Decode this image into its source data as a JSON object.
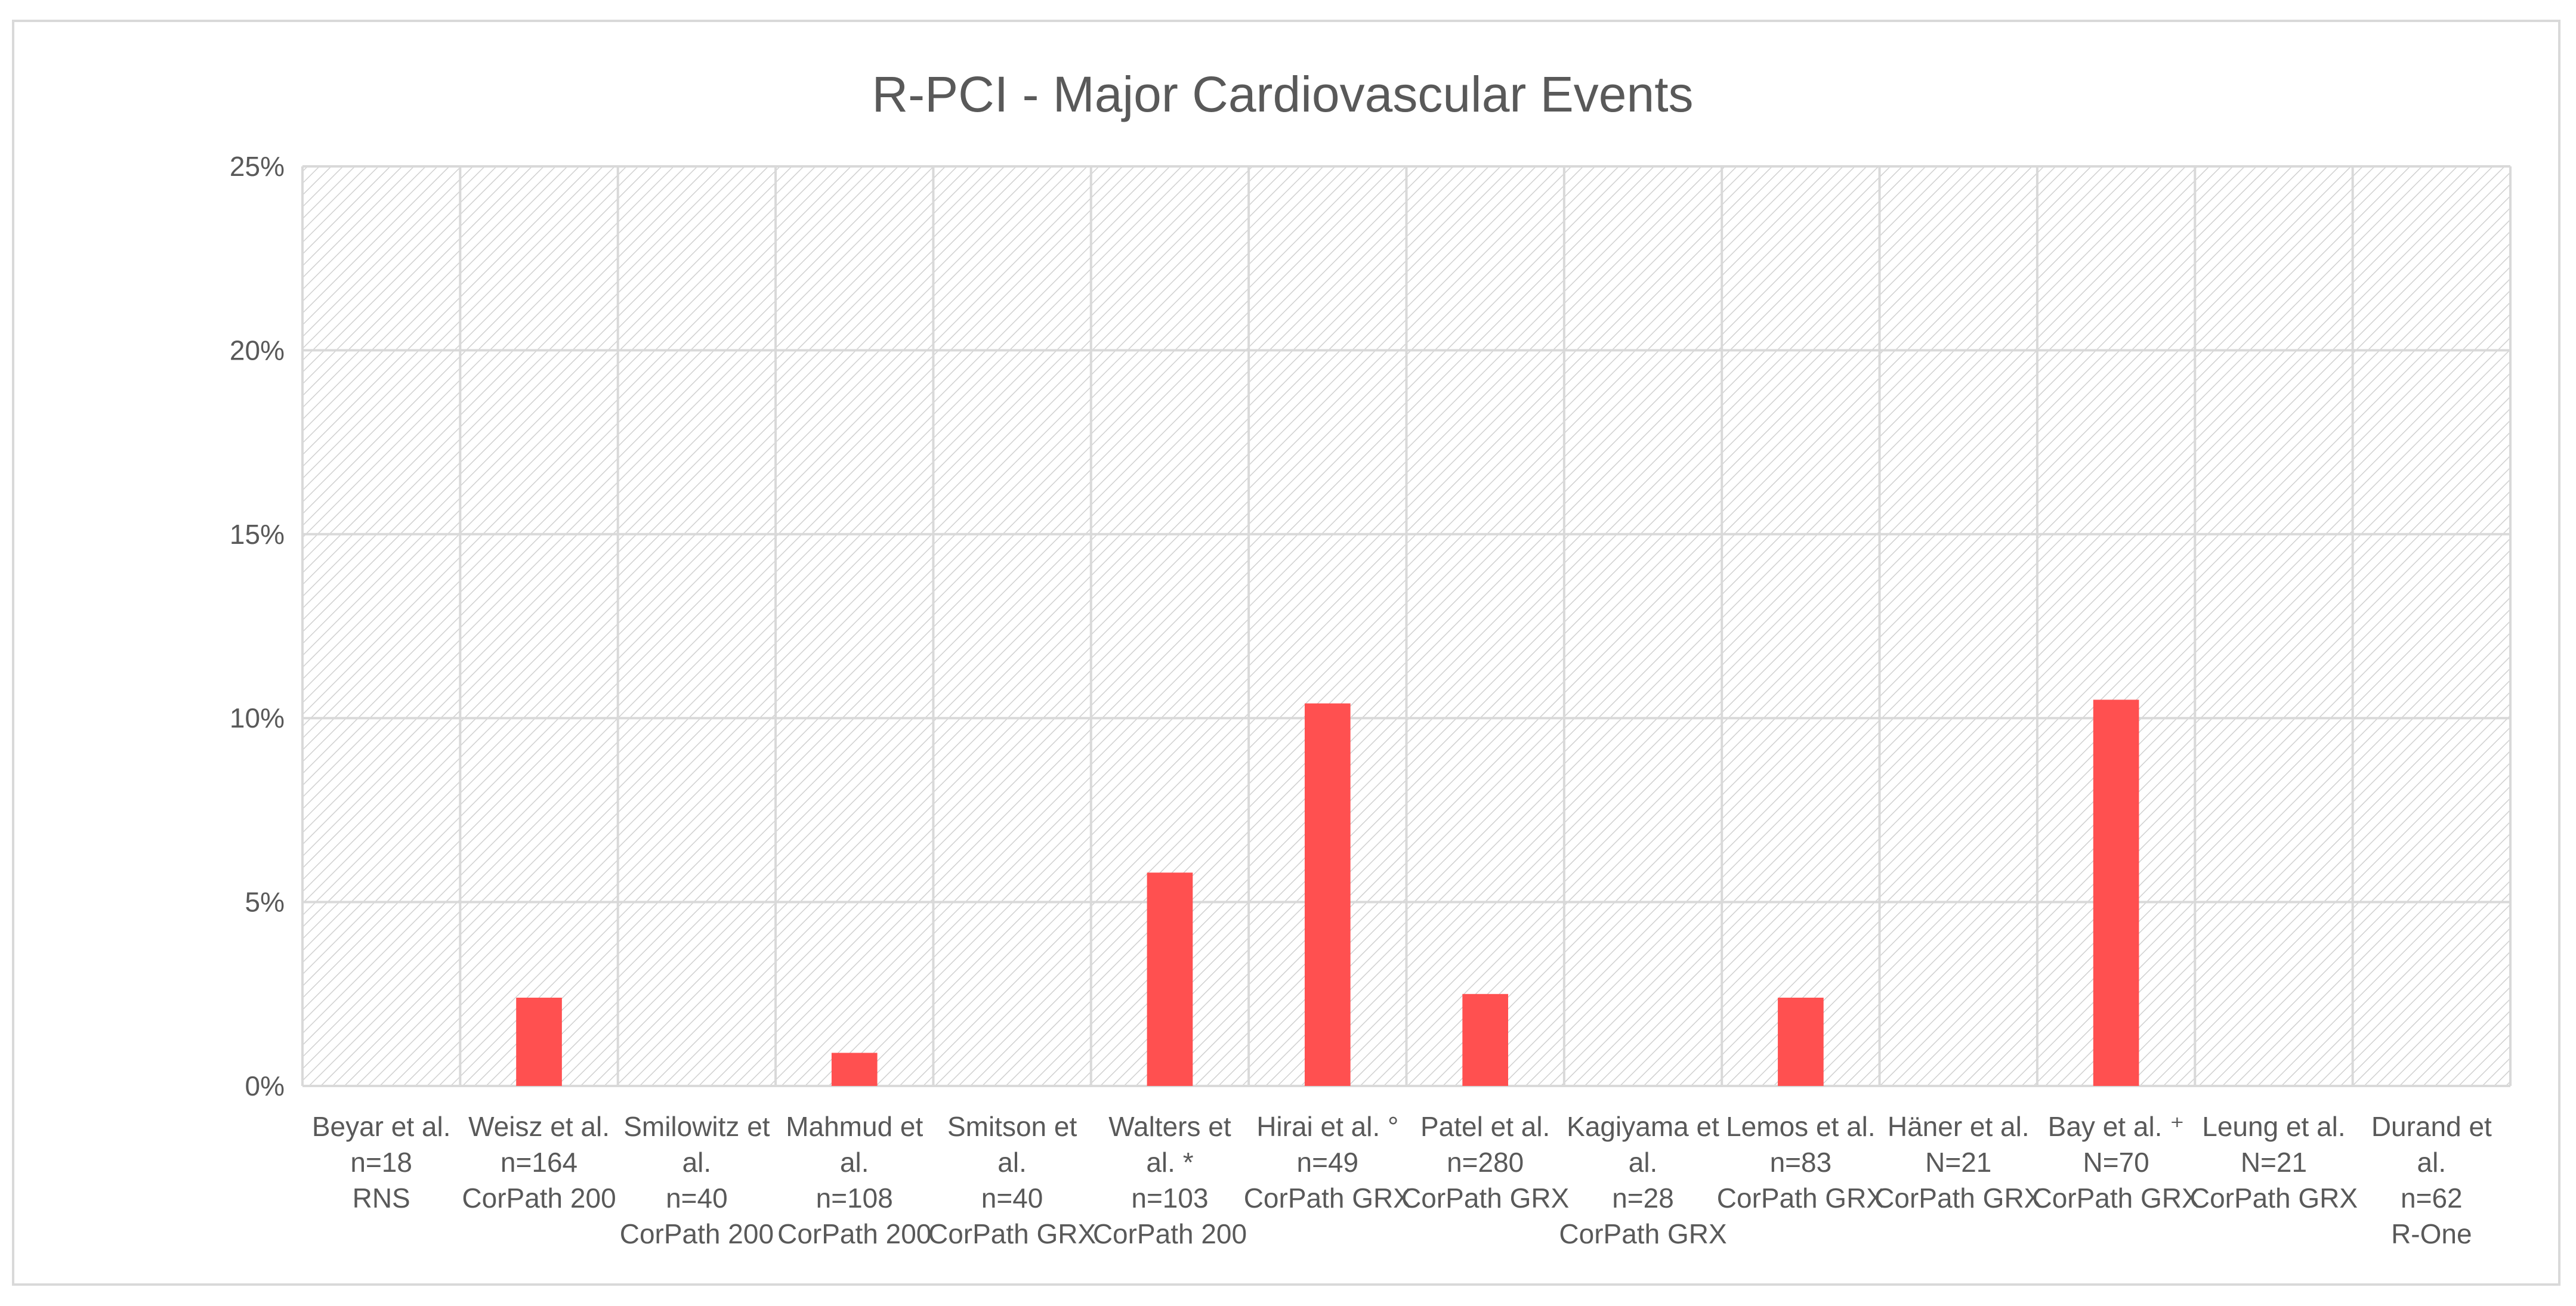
{
  "chart_data": {
    "type": "bar",
    "title": "R-PCI - Major Cardiovascular Events",
    "xlabel": "",
    "ylabel": "",
    "ylim": [
      0,
      25
    ],
    "yticks": [
      "0%",
      "5%",
      "10%",
      "15%",
      "20%",
      "25%"
    ],
    "ytick_values": [
      0,
      5,
      10,
      15,
      20,
      25
    ],
    "grid": true,
    "legend": "none",
    "bar_color": "#ff5050",
    "grid_color": "#d9d9d9",
    "categories": [
      {
        "lines": [
          "Beyar et al.",
          "n=18",
          "RNS"
        ]
      },
      {
        "lines": [
          "Weisz et al.",
          "n=164",
          "CorPath 200"
        ]
      },
      {
        "lines": [
          "Smilowitz et",
          "al.",
          "n=40",
          "CorPath 200"
        ]
      },
      {
        "lines": [
          "Mahmud et",
          "al.",
          "n=108",
          "CorPath 200"
        ]
      },
      {
        "lines": [
          "Smitson et",
          "al.",
          "n=40",
          "CorPath GRX"
        ]
      },
      {
        "lines": [
          "Walters et",
          "al. *",
          "n=103",
          "CorPath 200"
        ]
      },
      {
        "lines": [
          "Hirai et al. °",
          "n=49",
          "CorPath GRX"
        ]
      },
      {
        "lines": [
          "Patel et al.",
          "n=280",
          "CorPath GRX"
        ]
      },
      {
        "lines": [
          "Kagiyama et",
          "al.",
          "n=28",
          "CorPath GRX"
        ]
      },
      {
        "lines": [
          "Lemos et al.",
          "n=83",
          "CorPath GRX"
        ]
      },
      {
        "lines": [
          "Häner et al.",
          "N=21",
          "CorPath GRX"
        ]
      },
      {
        "lines": [
          "Bay et al. ⁺",
          "N=70",
          "CorPath GRX"
        ]
      },
      {
        "lines": [
          "Leung et al.",
          "N=21",
          "CorPath GRX"
        ]
      },
      {
        "lines": [
          "Durand et",
          "al.",
          "n=62",
          "R-One"
        ]
      }
    ],
    "values": [
      0,
      2.4,
      0,
      0.9,
      0,
      5.8,
      10.4,
      2.5,
      0,
      2.4,
      0,
      10.5,
      0,
      0
    ]
  }
}
